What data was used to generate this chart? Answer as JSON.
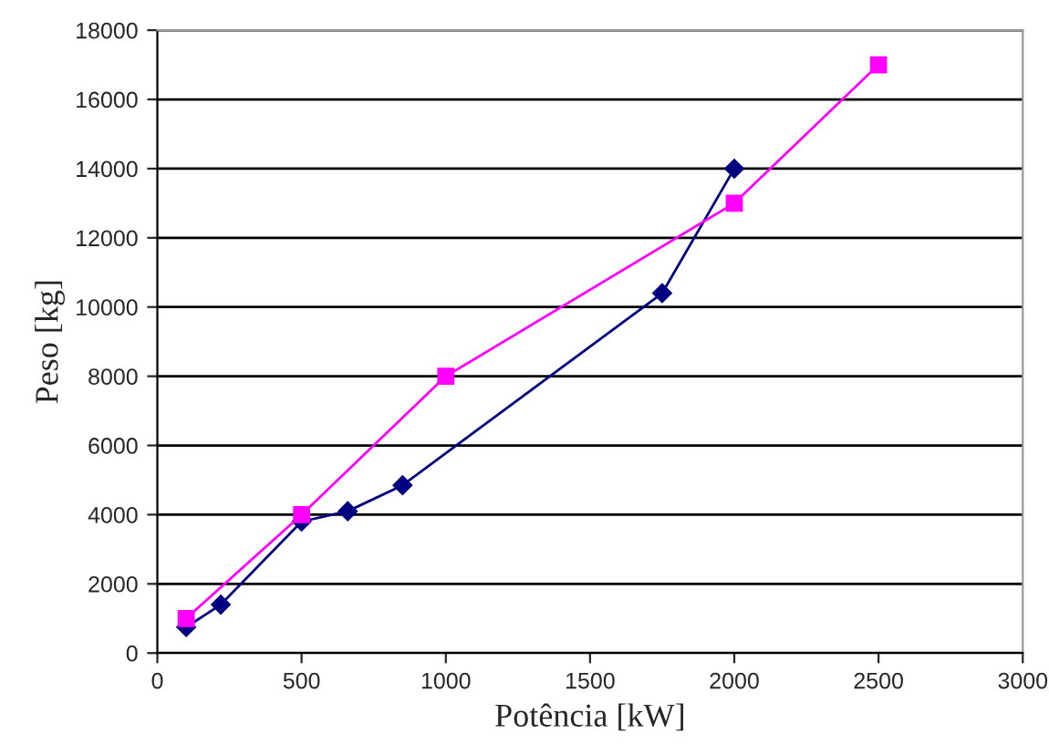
{
  "chart_data": {
    "type": "line",
    "xlabel": "Potência [kW]",
    "ylabel": "Peso [kg]",
    "xlim": [
      0,
      3000
    ],
    "xticks": [
      0,
      500,
      1000,
      1500,
      2000,
      2500,
      3000
    ],
    "ylim": [
      0,
      18000
    ],
    "yticks": [
      0,
      2000,
      4000,
      6000,
      8000,
      10000,
      12000,
      14000,
      16000,
      18000
    ],
    "grid": "y",
    "series": [
      {
        "color": "#000080",
        "marker": "diamond",
        "x": [
          100,
          220,
          500,
          660,
          850,
          1750,
          2000
        ],
        "values": [
          750,
          1400,
          3800,
          4100,
          4850,
          10400,
          14000
        ]
      },
      {
        "color": "#ff00ff",
        "marker": "square",
        "x": [
          100,
          500,
          1000,
          2000,
          2500
        ],
        "values": [
          1000,
          4000,
          8000,
          13000,
          17000
        ]
      }
    ]
  }
}
